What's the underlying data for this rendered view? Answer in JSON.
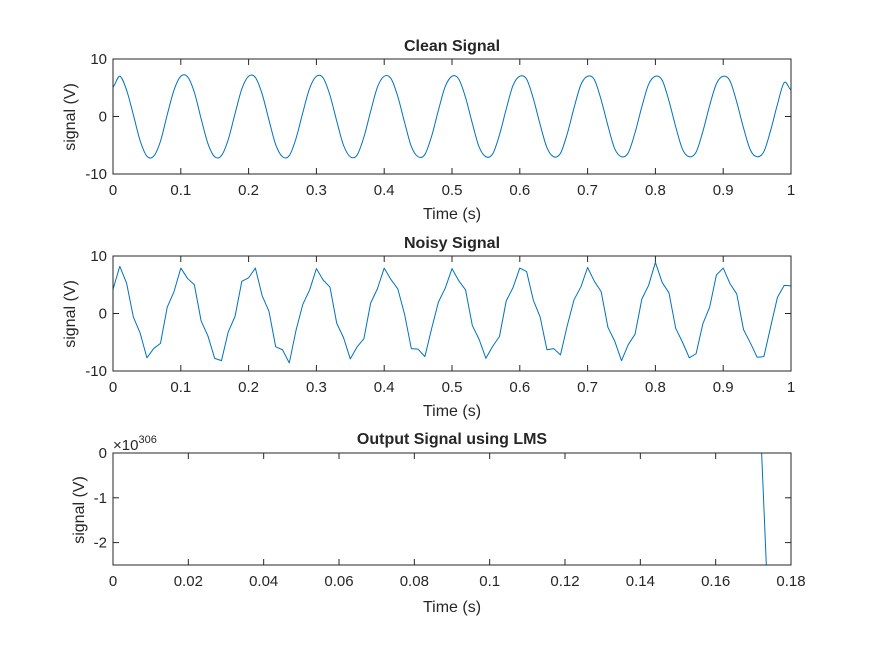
{
  "chart_data": [
    {
      "type": "line",
      "title": "Clean Signal",
      "xlabel": "Time (s)",
      "ylabel": "signal (V)",
      "xlim": [
        0,
        1
      ],
      "ylim": [
        -10,
        10
      ],
      "xticks": [
        0,
        0.1,
        0.2,
        0.3,
        0.4,
        0.5,
        0.6,
        0.7,
        0.8,
        0.9,
        1
      ],
      "xtick_labels": [
        "0",
        "0.1",
        "0.2",
        "0.3",
        "0.4",
        "0.5",
        "0.6",
        "0.7",
        "0.8",
        "0.9",
        "1"
      ],
      "yticks": [
        -10,
        0,
        10
      ],
      "ytick_labels": [
        "-10",
        "0",
        "10"
      ],
      "grid": false,
      "series": [
        {
          "color": "#0072BD",
          "x": [
            0,
            0.01,
            0.02,
            0.03,
            0.04,
            0.05,
            0.06,
            0.07,
            0.08,
            0.09,
            0.1,
            0.11,
            0.12,
            0.13,
            0.14,
            0.15,
            0.16,
            0.17,
            0.18,
            0.19,
            0.2,
            0.21,
            0.22,
            0.23,
            0.24,
            0.25,
            0.26,
            0.27,
            0.28,
            0.29,
            0.3,
            0.31,
            0.32,
            0.33,
            0.34,
            0.35,
            0.36,
            0.37,
            0.38,
            0.39,
            0.4,
            0.41,
            0.42,
            0.43,
            0.44,
            0.45,
            0.46,
            0.47,
            0.48,
            0.49,
            0.5,
            0.51,
            0.52,
            0.53,
            0.54,
            0.55,
            0.56,
            0.57,
            0.58,
            0.59,
            0.6,
            0.61,
            0.62,
            0.63,
            0.64,
            0.65,
            0.66,
            0.67,
            0.68,
            0.69,
            0.7,
            0.71,
            0.72,
            0.73,
            0.74,
            0.75,
            0.76,
            0.77,
            0.78,
            0.79,
            0.8,
            0.81,
            0.82,
            0.83,
            0.84,
            0.85,
            0.86,
            0.87,
            0.88,
            0.89,
            0.9,
            0.91,
            0.92,
            0.93,
            0.94,
            0.95,
            0.96,
            0.97,
            0.98,
            0.99,
            1
          ],
          "y": [
            5.1,
            7.0,
            4.6,
            0.3,
            -4.2,
            -6.9,
            -6.9,
            -4.3,
            0.3,
            4.6,
            7.0,
            6.9,
            4.2,
            -0.4,
            -4.7,
            -7.0,
            -6.8,
            -4.0,
            0.5,
            4.8,
            7.0,
            6.8,
            3.9,
            -0.6,
            -4.9,
            -7.0,
            -6.8,
            -3.8,
            0.7,
            4.9,
            7.0,
            6.7,
            3.7,
            -0.8,
            -5.0,
            -7.0,
            -6.7,
            -3.6,
            0.9,
            5.1,
            7.0,
            6.6,
            3.5,
            -1.0,
            -5.2,
            -7.0,
            -6.6,
            -3.4,
            1.1,
            5.2,
            7.0,
            6.5,
            3.3,
            -1.2,
            -5.3,
            -7.0,
            -6.5,
            -3.2,
            1.3,
            5.4,
            7.0,
            6.5,
            3.1,
            -1.4,
            -5.4,
            -7.0,
            -6.4,
            -3.0,
            1.5,
            5.5,
            7.0,
            6.4,
            2.9,
            -1.6,
            -5.6,
            -7.0,
            -6.3,
            -2.8,
            1.7,
            5.6,
            7.0,
            6.3,
            2.7,
            -1.8,
            -5.7,
            -7.0,
            -6.2,
            -2.6,
            1.9,
            5.7,
            7.0,
            6.2,
            2.5,
            -2.0,
            -5.8,
            -7.0,
            -6.1,
            -2.4,
            2.1,
            5.9,
            4.6
          ]
        }
      ]
    },
    {
      "type": "line",
      "title": "Noisy Signal",
      "xlabel": "Time (s)",
      "ylabel": "signal (V)",
      "xlim": [
        0,
        1
      ],
      "ylim": [
        -10,
        10
      ],
      "xticks": [
        0,
        0.1,
        0.2,
        0.3,
        0.4,
        0.5,
        0.6,
        0.7,
        0.8,
        0.9,
        1
      ],
      "xtick_labels": [
        "0",
        "0.1",
        "0.2",
        "0.3",
        "0.4",
        "0.5",
        "0.6",
        "0.7",
        "0.8",
        "0.9",
        "1"
      ],
      "yticks": [
        -10,
        0,
        10
      ],
      "ytick_labels": [
        "-10",
        "0",
        "10"
      ],
      "grid": false,
      "series": [
        {
          "color": "#0072BD",
          "x": [
            0,
            0.01,
            0.02,
            0.03,
            0.04,
            0.05,
            0.06,
            0.07,
            0.08,
            0.09,
            0.1,
            0.11,
            0.12,
            0.13,
            0.14,
            0.15,
            0.16,
            0.17,
            0.18,
            0.19,
            0.2,
            0.21,
            0.22,
            0.23,
            0.24,
            0.25,
            0.26,
            0.27,
            0.28,
            0.29,
            0.3,
            0.31,
            0.32,
            0.33,
            0.34,
            0.35,
            0.36,
            0.37,
            0.38,
            0.39,
            0.4,
            0.41,
            0.42,
            0.43,
            0.44,
            0.45,
            0.46,
            0.47,
            0.48,
            0.49,
            0.5,
            0.51,
            0.52,
            0.53,
            0.54,
            0.55,
            0.56,
            0.57,
            0.58,
            0.59,
            0.6,
            0.61,
            0.62,
            0.63,
            0.64,
            0.65,
            0.66,
            0.67,
            0.68,
            0.69,
            0.7,
            0.71,
            0.72,
            0.73,
            0.74,
            0.75,
            0.76,
            0.77,
            0.78,
            0.79,
            0.8,
            0.81,
            0.82,
            0.83,
            0.84,
            0.85,
            0.86,
            0.87,
            0.88,
            0.89,
            0.9,
            0.91,
            0.92,
            0.93,
            0.94,
            0.95,
            0.96,
            0.97,
            0.98,
            0.99,
            1
          ],
          "y": [
            4.2,
            8.2,
            5.3,
            -0.6,
            -3.4,
            -7.7,
            -6.1,
            -5.2,
            1.1,
            3.8,
            7.9,
            6.1,
            5.0,
            -1.3,
            -3.9,
            -7.8,
            -8.2,
            -3.2,
            -0.5,
            5.6,
            6.2,
            7.9,
            3.1,
            0.4,
            -5.8,
            -6.3,
            -8.6,
            -2.9,
            1.6,
            4.1,
            7.8,
            5.8,
            4.6,
            -1.7,
            -4.2,
            -7.9,
            -5.8,
            -4.4,
            1.8,
            4.3,
            7.9,
            5.9,
            4.3,
            -0.1,
            -6.1,
            -6.2,
            -7.5,
            -2.6,
            2.0,
            4.4,
            7.8,
            5.7,
            4.1,
            -2.1,
            -4.5,
            -7.8,
            -5.7,
            -4.0,
            2.2,
            4.5,
            7.9,
            7.3,
            2.3,
            -0.6,
            -6.3,
            -6.1,
            -7.2,
            -2.1,
            2.4,
            4.6,
            8.0,
            5.6,
            3.8,
            -2.4,
            -4.8,
            -8.2,
            -5.4,
            -3.6,
            2.5,
            4.9,
            8.9,
            5.4,
            3.6,
            -2.6,
            -5.0,
            -7.7,
            -7.0,
            -1.8,
            1.1,
            6.7,
            7.9,
            5.2,
            3.4,
            -2.8,
            -5.1,
            -7.6,
            -7.5,
            -2.3,
            2.8,
            4.9,
            4.8
          ]
        }
      ]
    },
    {
      "type": "line",
      "title": "Output Signal using LMS",
      "xlabel": "Time (s)",
      "ylabel": "signal (V)",
      "y_exponent_label": "×10",
      "y_exponent": "306",
      "xlim": [
        0,
        0.18
      ],
      "ylim": [
        -2.5,
        0
      ],
      "xticks": [
        0,
        0.02,
        0.04,
        0.06,
        0.08,
        0.1,
        0.12,
        0.14,
        0.16,
        0.18
      ],
      "xtick_labels": [
        "0",
        "0.02",
        "0.04",
        "0.06",
        "0.08",
        "0.1",
        "0.12",
        "0.14",
        "0.16",
        "0.18"
      ],
      "yticks": [
        -2,
        -1,
        0
      ],
      "ytick_labels": [
        "-2",
        "-1",
        "0"
      ],
      "grid": false,
      "series": [
        {
          "color": "#0072BD",
          "x": [
            0,
            0.1722,
            0.1735
          ],
          "y": [
            0,
            0,
            -2.6
          ]
        }
      ]
    }
  ]
}
